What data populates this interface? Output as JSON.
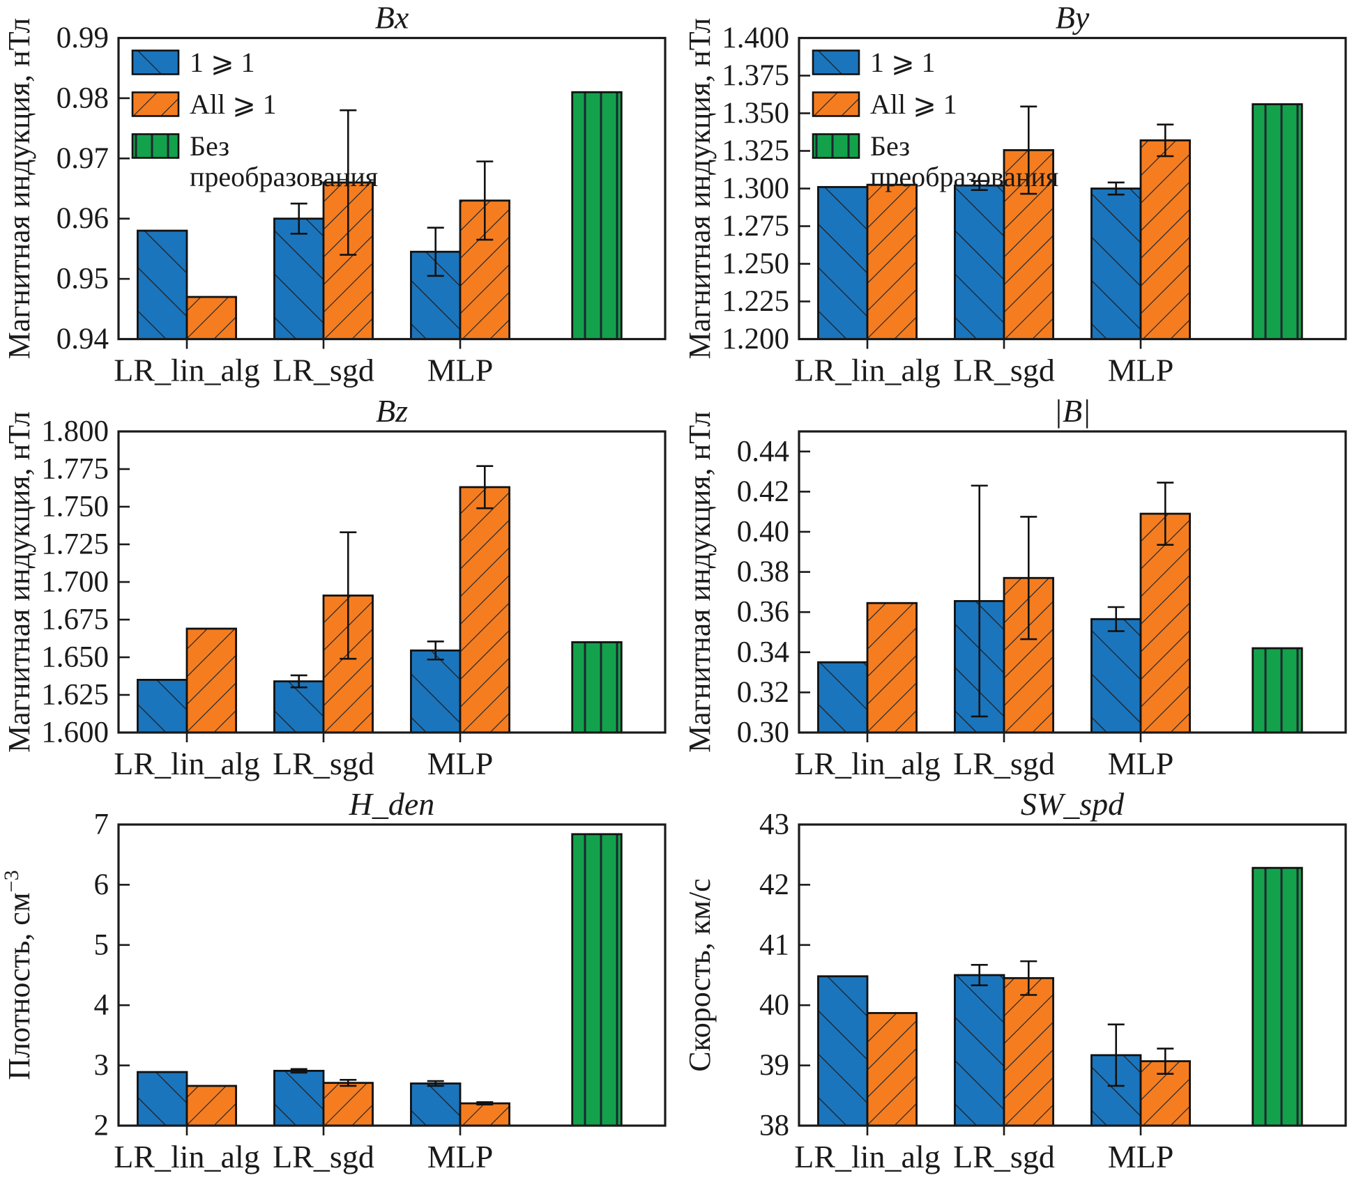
{
  "figure": {
    "background": "#ffffff",
    "colors": {
      "blue": "#1b75bc",
      "orange": "#f57d20",
      "green": "#13a24b",
      "edge": "#111111",
      "hatch": "#1d2630",
      "axis": "#1a1a1a",
      "text": "#1a1a1a"
    },
    "legend": {
      "entries": [
        {
          "key": "blue",
          "lines": [
            "1 ⩾ 1"
          ]
        },
        {
          "key": "orange",
          "lines": [
            "All ⩾ 1"
          ]
        },
        {
          "key": "green",
          "lines": [
            "Без",
            "преобразования"
          ]
        }
      ]
    }
  },
  "chart_data": [
    {
      "id": "bx",
      "type": "bar",
      "title": "Bx",
      "ylabel": "Магнитная индукция, нТл",
      "ylim": [
        0.94,
        0.99
      ],
      "yticks": [
        0.94,
        0.95,
        0.96,
        0.97,
        0.98,
        0.99
      ],
      "ydecimals": 2,
      "legend": true,
      "categories": [
        "LR_lin_alg",
        "LR_sgd",
        "MLP"
      ],
      "series": [
        {
          "name": "1 ⩾ 1",
          "color": "blue",
          "values": [
            0.958,
            0.96,
            0.9545
          ],
          "errors": [
            0,
            0.0025,
            0.004
          ]
        },
        {
          "name": "All ⩾ 1",
          "color": "orange",
          "values": [
            0.947,
            0.966,
            0.963
          ],
          "errors": [
            0,
            0.012,
            0.0065
          ]
        }
      ],
      "baseline_bar": {
        "name": "Без преобразования",
        "color": "green",
        "value": 0.981,
        "error": 0
      }
    },
    {
      "id": "by",
      "type": "bar",
      "title": "By",
      "ylabel": "Магнитная индукция, нТл",
      "ylim": [
        1.2,
        1.4
      ],
      "yticks": [
        1.2,
        1.225,
        1.25,
        1.275,
        1.3,
        1.325,
        1.35,
        1.375,
        1.4
      ],
      "ydecimals": 3,
      "legend": true,
      "categories": [
        "LR_lin_alg",
        "LR_sgd",
        "MLP"
      ],
      "series": [
        {
          "name": "1 ⩾ 1",
          "color": "blue",
          "values": [
            1.301,
            1.302,
            1.3
          ],
          "errors": [
            0,
            0.003,
            0.004
          ]
        },
        {
          "name": "All ⩾ 1",
          "color": "orange",
          "values": [
            1.3025,
            1.3255,
            1.332
          ],
          "errors": [
            0,
            0.029,
            0.0105
          ]
        }
      ],
      "baseline_bar": {
        "name": "Без преобразования",
        "color": "green",
        "value": 1.356,
        "error": 0
      }
    },
    {
      "id": "bz",
      "type": "bar",
      "title": "Bz",
      "ylabel": "Магнитная индукция, нТл",
      "ylim": [
        1.6,
        1.8
      ],
      "yticks": [
        1.6,
        1.625,
        1.65,
        1.675,
        1.7,
        1.725,
        1.75,
        1.775,
        1.8
      ],
      "ydecimals": 3,
      "legend": false,
      "categories": [
        "LR_lin_alg",
        "LR_sgd",
        "MLP"
      ],
      "series": [
        {
          "name": "1 ⩾ 1",
          "color": "blue",
          "values": [
            1.635,
            1.634,
            1.6545
          ],
          "errors": [
            0,
            0.004,
            0.006
          ]
        },
        {
          "name": "All ⩾ 1",
          "color": "orange",
          "values": [
            1.669,
            1.691,
            1.763
          ],
          "errors": [
            0,
            0.042,
            0.014
          ]
        }
      ],
      "baseline_bar": {
        "name": "Без преобразования",
        "color": "green",
        "value": 1.66,
        "error": 0
      }
    },
    {
      "id": "babs",
      "type": "bar",
      "title": "|B|",
      "ylabel": "Магнитная индукция, нТл",
      "ylim": [
        0.3,
        0.45
      ],
      "yticks": [
        0.3,
        0.32,
        0.34,
        0.36,
        0.38,
        0.4,
        0.42,
        0.44
      ],
      "ydecimals": 2,
      "legend": false,
      "categories": [
        "LR_lin_alg",
        "LR_sgd",
        "MLP"
      ],
      "series": [
        {
          "name": "1 ⩾ 1",
          "color": "blue",
          "values": [
            0.335,
            0.3655,
            0.3565
          ],
          "errors": [
            0,
            0.0575,
            0.006
          ]
        },
        {
          "name": "All ⩾ 1",
          "color": "orange",
          "values": [
            0.3645,
            0.377,
            0.409
          ],
          "errors": [
            0,
            0.0305,
            0.0155
          ]
        }
      ],
      "baseline_bar": {
        "name": "Без преобразования",
        "color": "green",
        "value": 0.342,
        "error": 0
      }
    },
    {
      "id": "hden",
      "type": "bar",
      "title": "H_den",
      "ylabel": "Плотность, см",
      "ylabel_sup": "−3",
      "ylim": [
        2,
        7
      ],
      "yticks": [
        2,
        3,
        4,
        5,
        6,
        7
      ],
      "ydecimals": 0,
      "legend": false,
      "categories": [
        "LR_lin_alg",
        "LR_sgd",
        "MLP"
      ],
      "series": [
        {
          "name": "1 ⩾ 1",
          "color": "blue",
          "values": [
            2.89,
            2.91,
            2.7
          ],
          "errors": [
            0,
            0.03,
            0.04
          ]
        },
        {
          "name": "All ⩾ 1",
          "color": "orange",
          "values": [
            2.66,
            2.71,
            2.37
          ],
          "errors": [
            0,
            0.05,
            0.02
          ]
        }
      ],
      "baseline_bar": {
        "name": "Без преобразования",
        "color": "green",
        "value": 6.84,
        "error": 0
      }
    },
    {
      "id": "swspd",
      "type": "bar",
      "title": "SW_spd",
      "ylabel": "Скорость, км/с",
      "ylim": [
        38,
        43
      ],
      "yticks": [
        38,
        39,
        40,
        41,
        42,
        43
      ],
      "ydecimals": 0,
      "legend": false,
      "categories": [
        "LR_lin_alg",
        "LR_sgd",
        "MLP"
      ],
      "series": [
        {
          "name": "1 ⩾ 1",
          "color": "blue",
          "values": [
            40.48,
            40.5,
            39.17
          ],
          "errors": [
            0,
            0.17,
            0.51
          ]
        },
        {
          "name": "All ⩾ 1",
          "color": "orange",
          "values": [
            39.87,
            40.45,
            39.07
          ],
          "errors": [
            0,
            0.28,
            0.21
          ]
        }
      ],
      "baseline_bar": {
        "name": "Без преобразования",
        "color": "green",
        "value": 42.28,
        "error": 0
      }
    }
  ]
}
